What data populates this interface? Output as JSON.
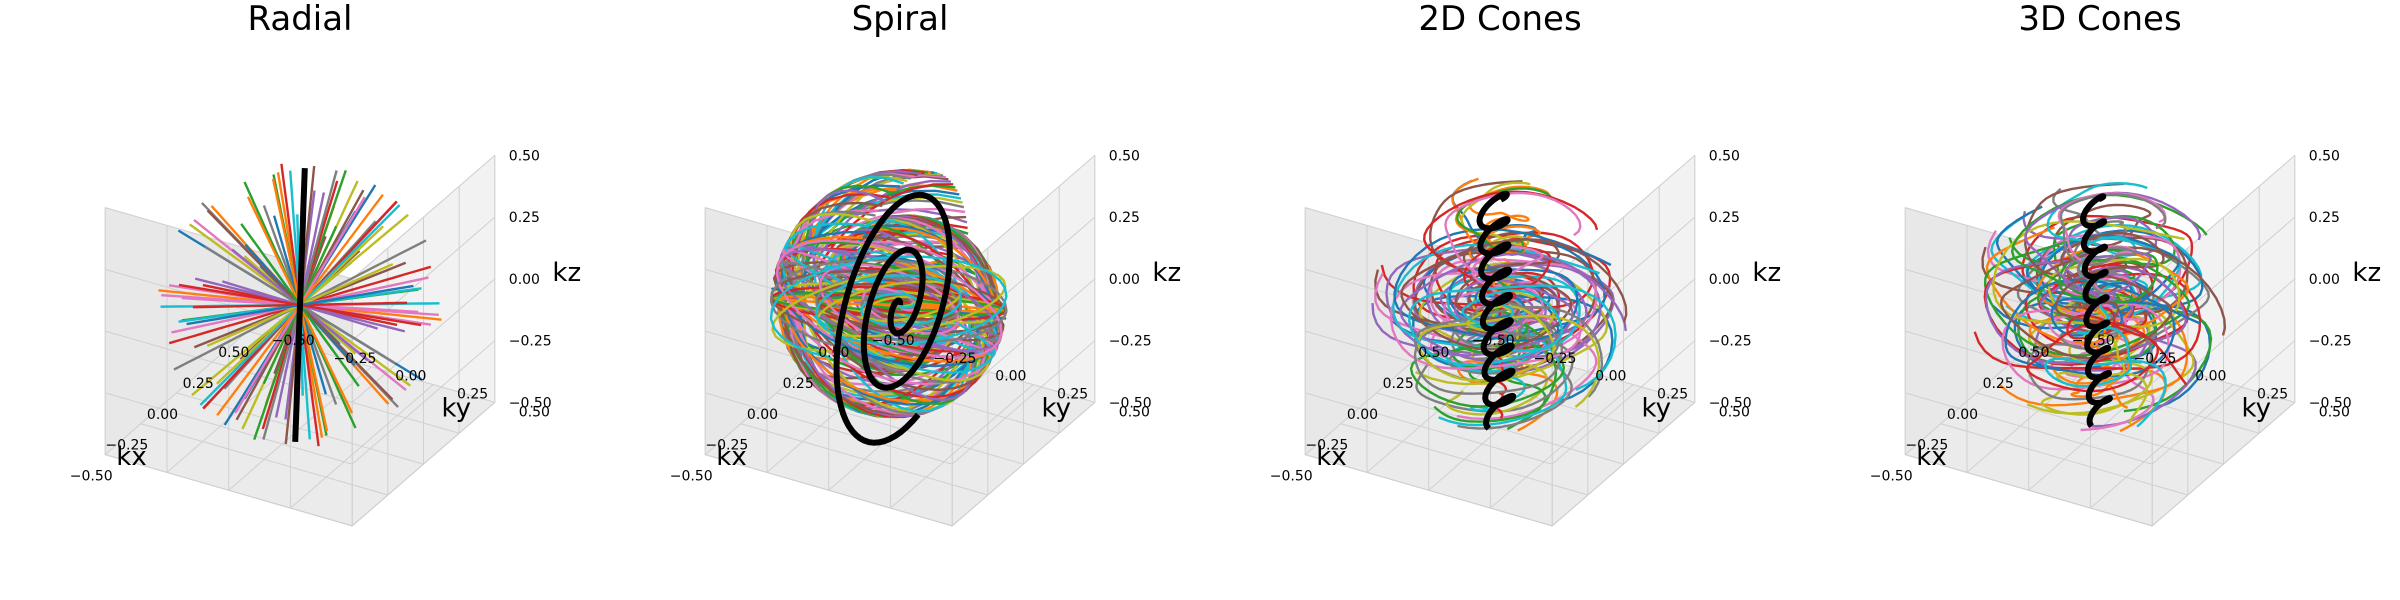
{
  "figure": {
    "background": "#ffffff",
    "pane_colors": [
      "#f2f2f2",
      "#e8e8e8",
      "#ebebeb"
    ],
    "grid_color": "#d0d0d0"
  },
  "palette": [
    "#1f77b4",
    "#ff7f0e",
    "#2ca02c",
    "#d62728",
    "#9467bd",
    "#8c564b",
    "#e377c2",
    "#7f7f7f",
    "#bcbd22",
    "#17becf"
  ],
  "highlight_color": "#000000",
  "chart_data": [
    {
      "type": "line3d",
      "title": "Radial",
      "xlabel": "kx",
      "ylabel": "ky",
      "zlabel": "kz",
      "xlim": [
        -0.5,
        0.5
      ],
      "ylim": [
        -0.5,
        0.5
      ],
      "zlim": [
        -0.5,
        0.5
      ],
      "xticks": [
        "−0.50",
        "−0.25",
        "0.00",
        "0.25",
        "0.50"
      ],
      "yticks": [
        "−0.50",
        "−0.25",
        "0.00",
        "0.25",
        "0.50"
      ],
      "zticks": [
        "−0.50",
        "−0.25",
        "0.00",
        "0.25",
        "0.50"
      ],
      "grid": true,
      "trajectory": "radial",
      "n_traces": 64,
      "highlight_index": 0
    },
    {
      "type": "line3d",
      "title": "Spiral",
      "xlabel": "kx",
      "ylabel": "ky",
      "zlabel": "kz",
      "xlim": [
        -0.5,
        0.5
      ],
      "ylim": [
        -0.5,
        0.5
      ],
      "zlim": [
        -0.5,
        0.5
      ],
      "xticks": [
        "−0.50",
        "−0.25",
        "0.00",
        "0.25",
        "0.50"
      ],
      "yticks": [
        "−0.50",
        "−0.25",
        "0.00",
        "0.25",
        "0.50"
      ],
      "zticks": [
        "−0.50",
        "−0.25",
        "0.00",
        "0.25",
        "0.50"
      ],
      "grid": true,
      "trajectory": "spiral",
      "n_traces": 60,
      "highlight_index": 0
    },
    {
      "type": "line3d",
      "title": "2D Cones",
      "xlabel": "kx",
      "ylabel": "ky",
      "zlabel": "kz",
      "xlim": [
        -0.5,
        0.5
      ],
      "ylim": [
        -0.5,
        0.5
      ],
      "zlim": [
        -0.5,
        0.5
      ],
      "xticks": [
        "−0.50",
        "−0.25",
        "0.00",
        "0.25",
        "0.50"
      ],
      "yticks": [
        "−0.50",
        "−0.25",
        "0.00",
        "0.25",
        "0.50"
      ],
      "zticks": [
        "−0.50",
        "−0.25",
        "0.00",
        "0.25",
        "0.50"
      ],
      "grid": true,
      "trajectory": "cones2d",
      "n_traces": 40,
      "highlight_index": 0
    },
    {
      "type": "line3d",
      "title": "3D Cones",
      "xlabel": "kx",
      "ylabel": "ky",
      "zlabel": "kz",
      "xlim": [
        -0.5,
        0.5
      ],
      "ylim": [
        -0.5,
        0.5
      ],
      "zlim": [
        -0.5,
        0.5
      ],
      "xticks": [
        "−0.50",
        "−0.25",
        "0.00",
        "0.25",
        "0.50"
      ],
      "yticks": [
        "−0.50",
        "−0.25",
        "0.00",
        "0.25",
        "0.50"
      ],
      "zticks": [
        "−0.50",
        "−0.25",
        "0.00",
        "0.25",
        "0.50"
      ],
      "grid": true,
      "trajectory": "cones3d",
      "n_traces": 40,
      "highlight_index": 0
    }
  ]
}
